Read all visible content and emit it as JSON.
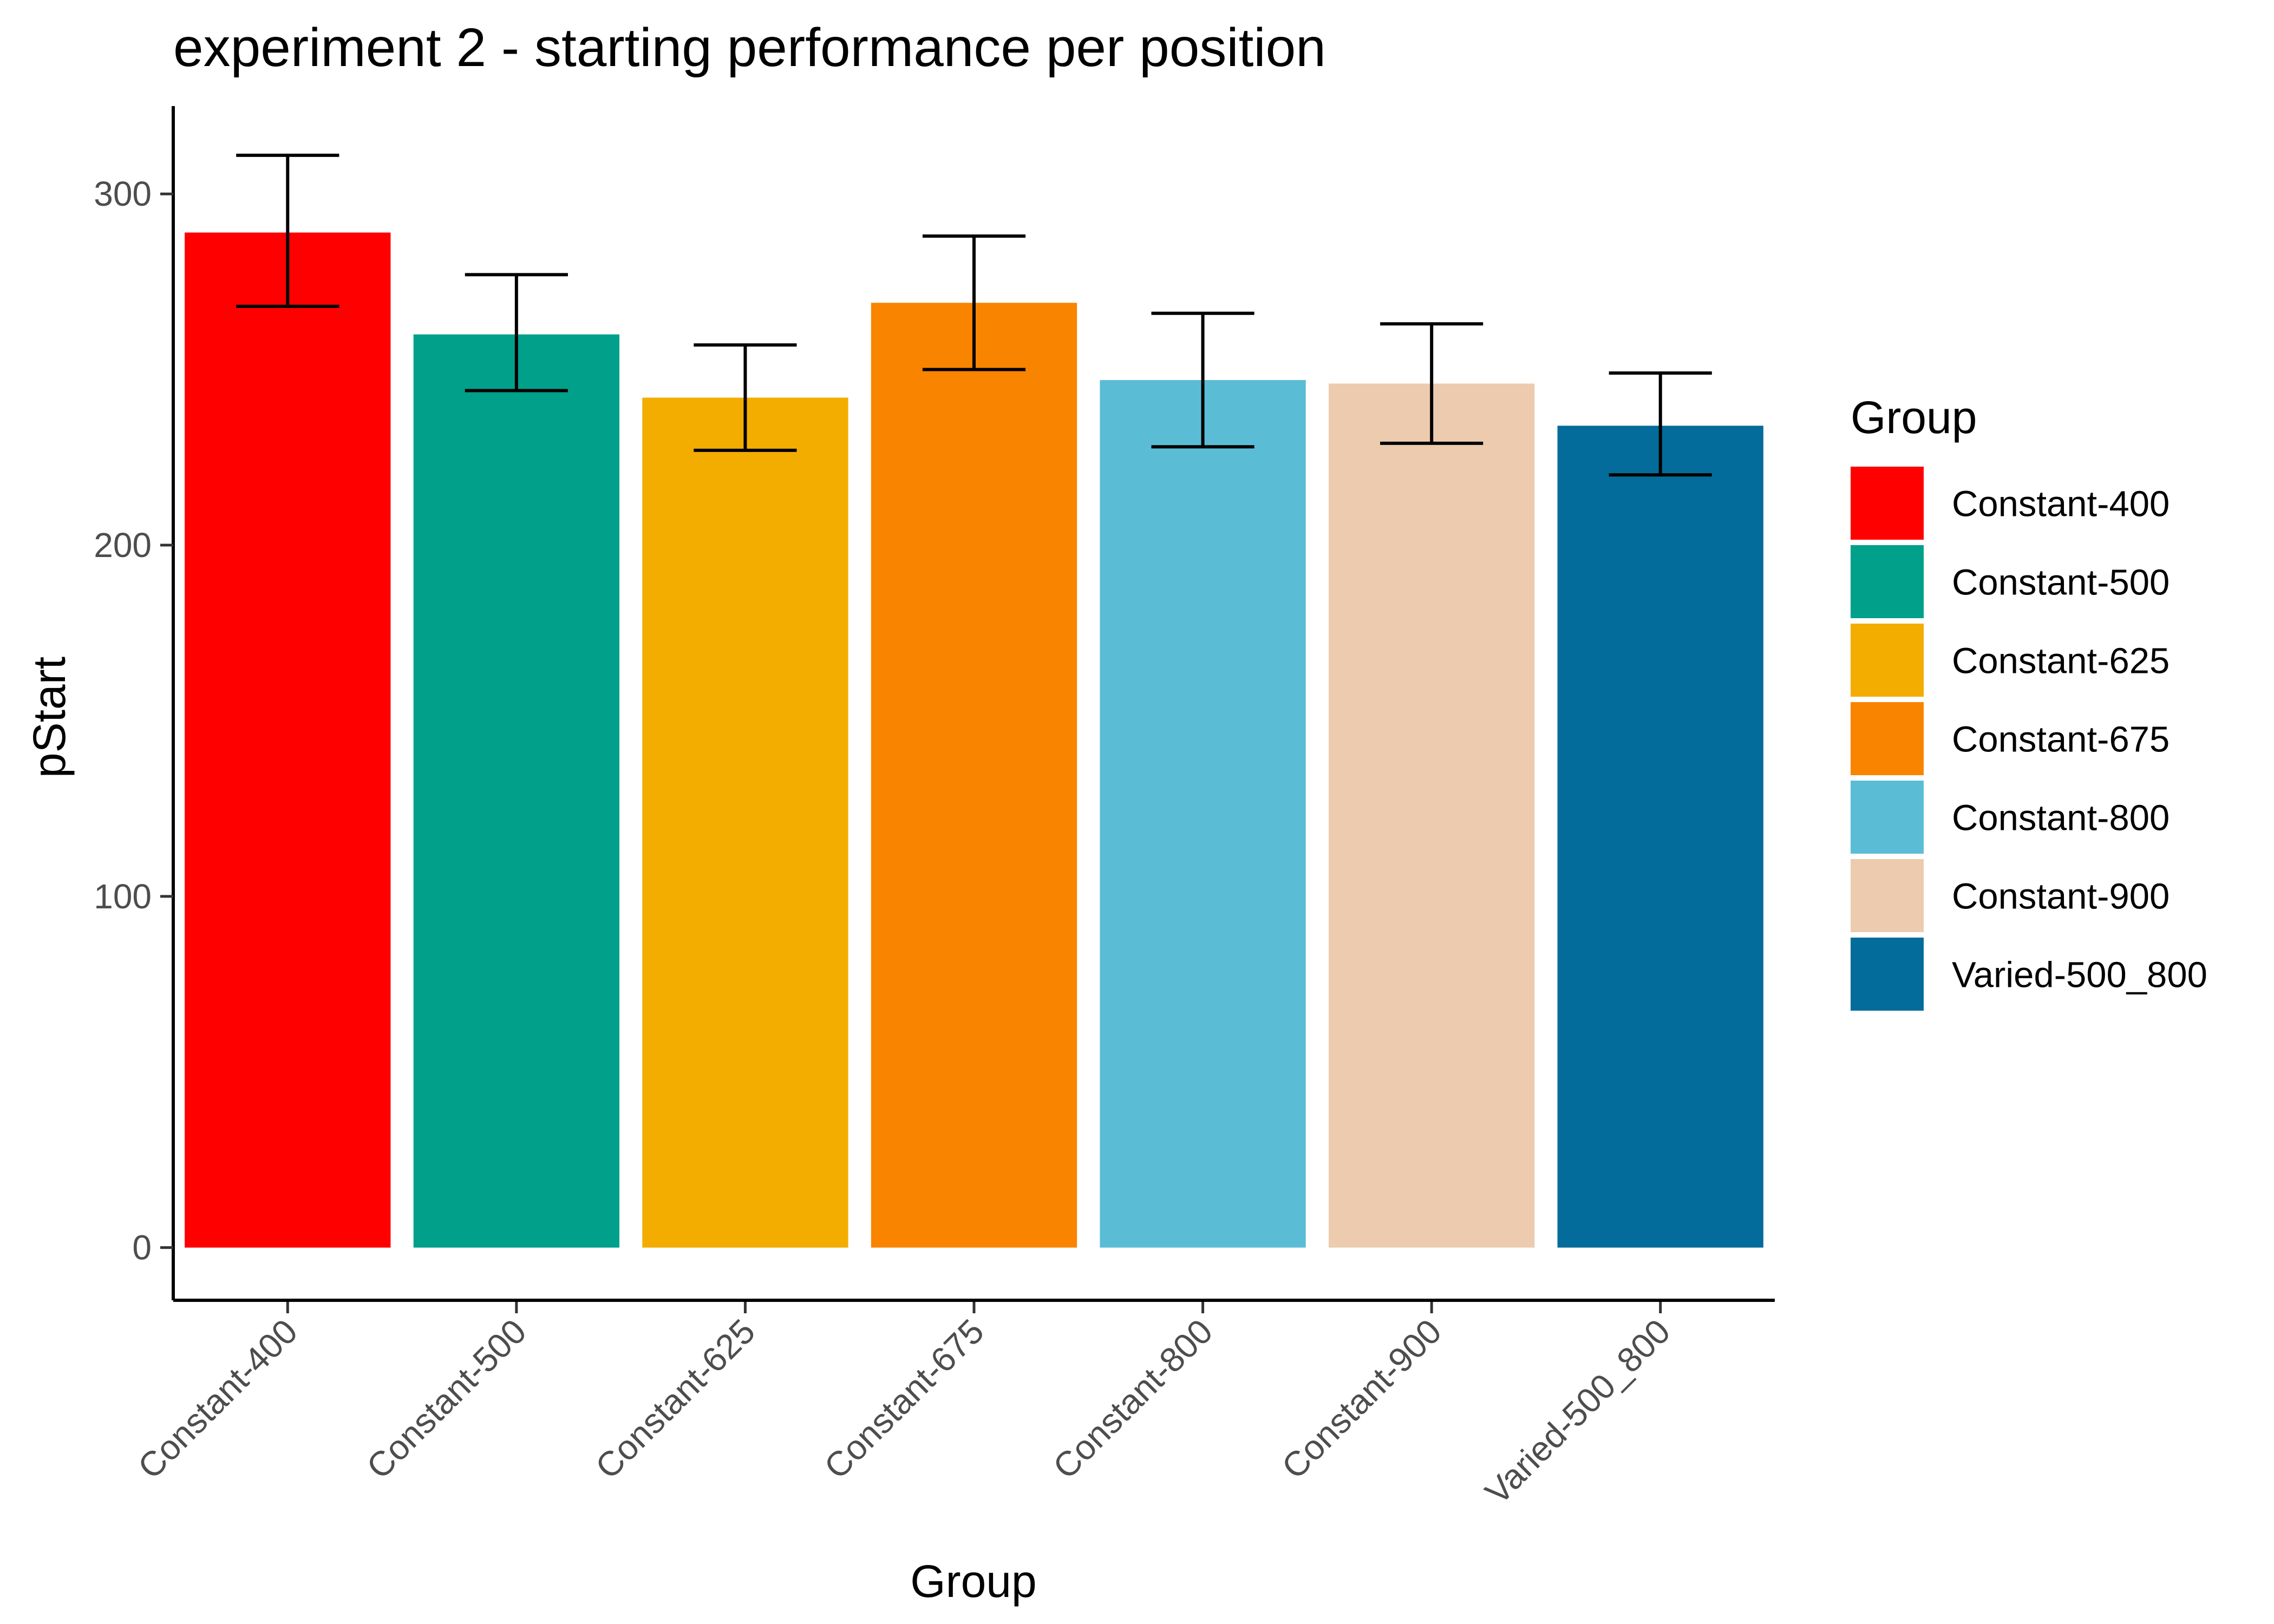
{
  "chart_data": {
    "type": "bar",
    "title": "experiment 2 - starting performance per position",
    "xlabel": "Group",
    "ylabel": "pStart",
    "categories": [
      "Constant-400",
      "Constant-500",
      "Constant-625",
      "Constant-675",
      "Constant-800",
      "Constant-900",
      "Varied-500_800"
    ],
    "values": [
      289,
      260,
      242,
      269,
      247,
      246,
      234
    ],
    "error_low": [
      268,
      244,
      227,
      250,
      228,
      229,
      220
    ],
    "error_high": [
      311,
      277,
      257,
      288,
      266,
      263,
      249
    ],
    "colors": [
      "#FF0000",
      "#00A08A",
      "#F2AD00",
      "#F98400",
      "#5BBCD6",
      "#ECCBAE",
      "#046C9A"
    ],
    "ylim": [
      -15,
      325
    ],
    "yticks": [
      0,
      100,
      200,
      300
    ],
    "legend": {
      "title": "Group",
      "position": "right",
      "entries": [
        "Constant-400",
        "Constant-500",
        "Constant-625",
        "Constant-675",
        "Constant-800",
        "Constant-900",
        "Varied-500_800"
      ]
    },
    "grid": false
  }
}
